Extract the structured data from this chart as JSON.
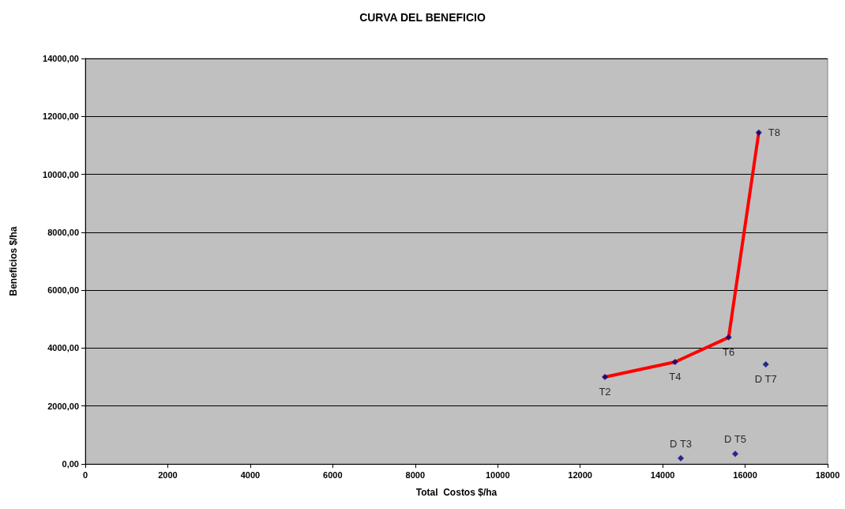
{
  "chart_data": {
    "type": "scatter",
    "title": "CURVA DEL BENEFICIO",
    "xlabel": "Total  Costos $/ha",
    "ylabel": "Beneficios $/ha",
    "xlim": [
      0,
      18000
    ],
    "xticks": [
      0,
      2000,
      4000,
      6000,
      8000,
      10000,
      12000,
      14000,
      16000,
      18000
    ],
    "ylim": [
      0,
      14000
    ],
    "yticks": [
      {
        "value": 0,
        "label": "0,00"
      },
      {
        "value": 2000,
        "label": "2000,00"
      },
      {
        "value": 4000,
        "label": "4000,00"
      },
      {
        "value": 6000,
        "label": "6000,00"
      },
      {
        "value": 8000,
        "label": "8000,00"
      },
      {
        "value": 10000,
        "label": "10000,00"
      },
      {
        "value": 12000,
        "label": "12000,00"
      },
      {
        "value": 14000,
        "label": "14000,00"
      }
    ],
    "grid": "y",
    "series": [
      {
        "type": "line",
        "color": "#ff0000",
        "marker": "none",
        "line_style": "solid",
        "x": [
          12600,
          14300,
          15600,
          16330
        ],
        "values": [
          3000,
          3520,
          4370,
          11440
        ]
      },
      {
        "color": "#000080",
        "marker": "diamond",
        "x": [
          12600,
          14300,
          15600,
          16330,
          14440,
          15760,
          16500
        ],
        "values": [
          3000,
          3520,
          4370,
          11440,
          200,
          350,
          3440
        ],
        "value_labels": [
          "T2",
          "T4",
          "T6",
          "T8",
          "D T3",
          "D T5",
          "D T7"
        ]
      }
    ]
  }
}
